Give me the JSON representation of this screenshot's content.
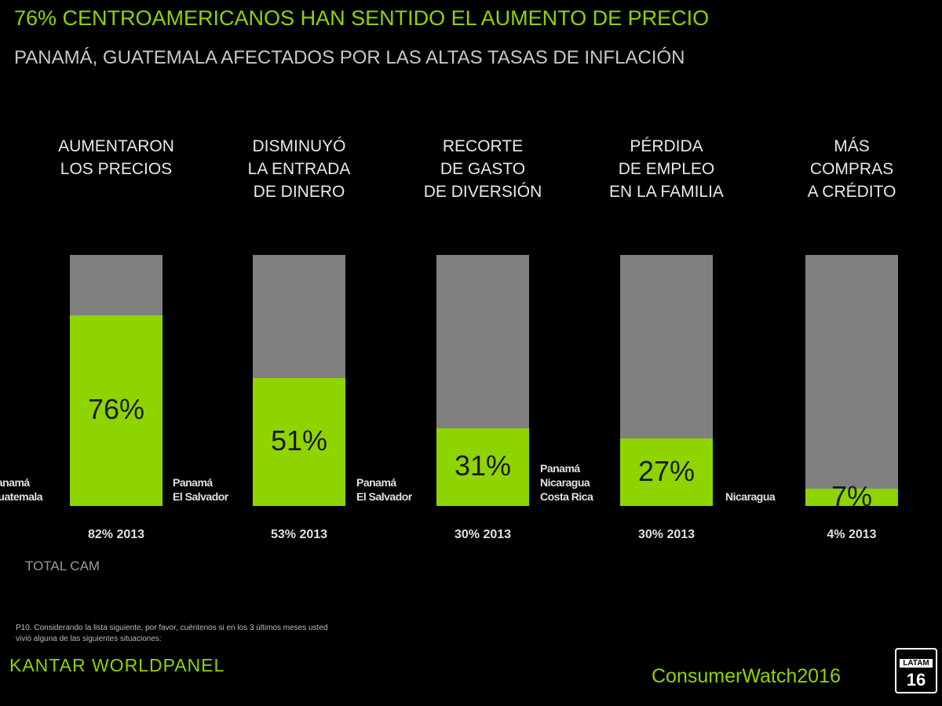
{
  "chart_data": {
    "type": "bar",
    "title": "76% CENTROAMERICANOS HAN SENTIDO EL  AUMENTO DE PRECIO",
    "subtitle": "PANAMÁ, GUATEMALA  AFECTADOS POR LAS ALTAS TASAS DE INFLACIÓN",
    "categories": [
      "AUMENTARON\nLOS PRECIOS",
      "DISMINUYÓ\nLA ENTRADA\nDE DINERO",
      "RECORTE\nDE GASTO\nDE DIVERSIÓN",
      "PÉRDIDA\nDE EMPLEO\nEN LA FAMILIA",
      "MÁS\nCOMPRAS\nA CRÉDITO"
    ],
    "values": [
      76,
      51,
      31,
      27,
      7
    ],
    "value_labels": [
      "76%",
      "51%",
      "31%",
      "27%",
      "7%"
    ],
    "countries": [
      "Panamá\nGuatemala",
      "Panamá\nEl Salvador",
      "Panamá\nEl Salvador",
      "Panamá\nNicaragua\nCosta Rica",
      "Nicaragua"
    ],
    "previous": [
      "82% 2013",
      "53% 2013",
      "30% 2013",
      "30% 2013",
      "4% 2013"
    ],
    "color": "#8fd400",
    "track_color": "#808080",
    "ylim": [
      0,
      100
    ],
    "base_label": "TOTAL CAM",
    "footnote": "P10. Considerando la lista siguiente, por favor, cuéntenos si en los 3 últimos meses usted\nvivió alguna de las siguientes situaciones:",
    "brand": "KANTAR WORLDPANEL",
    "event": "ConsumerWatch2016",
    "badge": [
      "LATAM",
      "16"
    ]
  }
}
